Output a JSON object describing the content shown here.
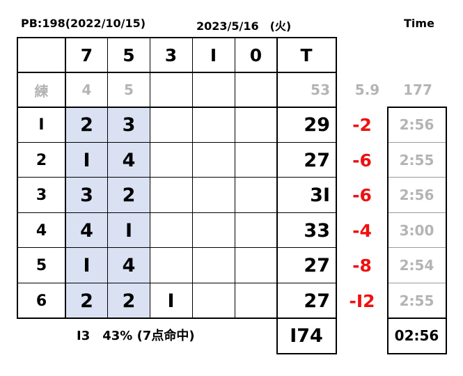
{
  "header": {
    "pb_label": "PB:198(2022/10/15)",
    "date_label": "2023/5/16　(火)",
    "time_title": "Time"
  },
  "columns": [
    "7",
    "5",
    "3",
    "I",
    "0",
    "T"
  ],
  "practice_row": {
    "label": "練",
    "c7": "4",
    "c5": "5",
    "total": "53",
    "avg": "5.9",
    "projection": "177"
  },
  "rounds": [
    {
      "label": "I",
      "c7": "2",
      "c5": "3",
      "c3": "",
      "total": "29",
      "diff": "-2",
      "time": "2:56"
    },
    {
      "label": "2",
      "c7": "I",
      "c5": "4",
      "c3": "",
      "total": "27",
      "diff": "-6",
      "time": "2:55"
    },
    {
      "label": "3",
      "c7": "3",
      "c5": "2",
      "c3": "",
      "total": "3I",
      "diff": "-6",
      "time": "2:56"
    },
    {
      "label": "4",
      "c7": "4",
      "c5": "I",
      "c3": "",
      "total": "33",
      "diff": "-4",
      "time": "3:00"
    },
    {
      "label": "5",
      "c7": "I",
      "c5": "4",
      "c3": "",
      "total": "27",
      "diff": "-8",
      "time": "2:54"
    },
    {
      "label": "6",
      "c7": "2",
      "c5": "2",
      "c3": "I",
      "total": "27",
      "diff": "-I2",
      "time": "2:55"
    }
  ],
  "summary": {
    "note": "I3　43% (7点命中)",
    "grand_total": "I74",
    "avg_time": "02:56"
  },
  "colors": {
    "shade": "#d9e1f2",
    "negative": "#ee1111",
    "muted": "#b4b4b4"
  }
}
